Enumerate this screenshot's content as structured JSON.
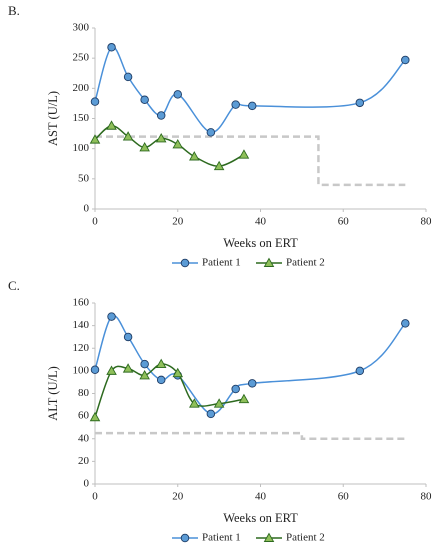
{
  "chart_data": [
    {
      "type": "line",
      "panel": "B.",
      "y_label": "AST (U/L)",
      "x_label": "Weeks on ERT",
      "xlim": [
        0,
        80
      ],
      "xticks": [
        0,
        20,
        40,
        60,
        80
      ],
      "ylim": [
        0,
        300
      ],
      "yticks": [
        0,
        50,
        100,
        150,
        200,
        250,
        300
      ],
      "series": [
        {
          "name": "Patient 1",
          "color": "#4a90d9",
          "marker_fill": "#5b9bd5",
          "marker": "circle",
          "x": [
            0,
            4,
            8,
            12,
            16,
            20,
            28,
            34,
            38,
            64,
            75
          ],
          "values": [
            178,
            268,
            219,
            181,
            155,
            190,
            127,
            173,
            171,
            176,
            247
          ]
        },
        {
          "name": "Patient 2",
          "color": "#2d6a1f",
          "marker_fill": "#8fbf5a",
          "marker": "triangle",
          "x": [
            0,
            4,
            8,
            12,
            16,
            20,
            24,
            30,
            36
          ],
          "values": [
            115,
            138,
            120,
            102,
            117,
            107,
            87,
            71,
            90
          ]
        }
      ],
      "reference": {
        "color": "#c8c8c8",
        "x": [
          0,
          54,
          54,
          75
        ],
        "values": [
          120,
          120,
          40,
          40
        ]
      }
    },
    {
      "type": "line",
      "panel": "C.",
      "y_label": "ALT (U/L)",
      "x_label": "Weeks on ERT",
      "xlim": [
        0,
        80
      ],
      "xticks": [
        0,
        20,
        40,
        60,
        80
      ],
      "ylim": [
        0,
        160
      ],
      "yticks": [
        0,
        20,
        40,
        60,
        80,
        100,
        120,
        140,
        160
      ],
      "series": [
        {
          "name": "Patient 1",
          "color": "#4a90d9",
          "marker_fill": "#5b9bd5",
          "marker": "circle",
          "x": [
            0,
            4,
            8,
            12,
            16,
            20,
            28,
            34,
            38,
            64,
            75
          ],
          "values": [
            101,
            148,
            130,
            106,
            92,
            96,
            62,
            84,
            89,
            100,
            142
          ]
        },
        {
          "name": "Patient 2",
          "color": "#2d6a1f",
          "marker_fill": "#8fbf5a",
          "marker": "triangle",
          "x": [
            0,
            4,
            8,
            12,
            16,
            20,
            24,
            30,
            36
          ],
          "values": [
            59,
            100,
            102,
            96,
            106,
            98,
            71,
            71,
            75
          ]
        }
      ],
      "reference": {
        "color": "#c8c8c8",
        "x": [
          0,
          50,
          50,
          75
        ],
        "values": [
          45,
          45,
          40,
          40
        ]
      }
    }
  ]
}
